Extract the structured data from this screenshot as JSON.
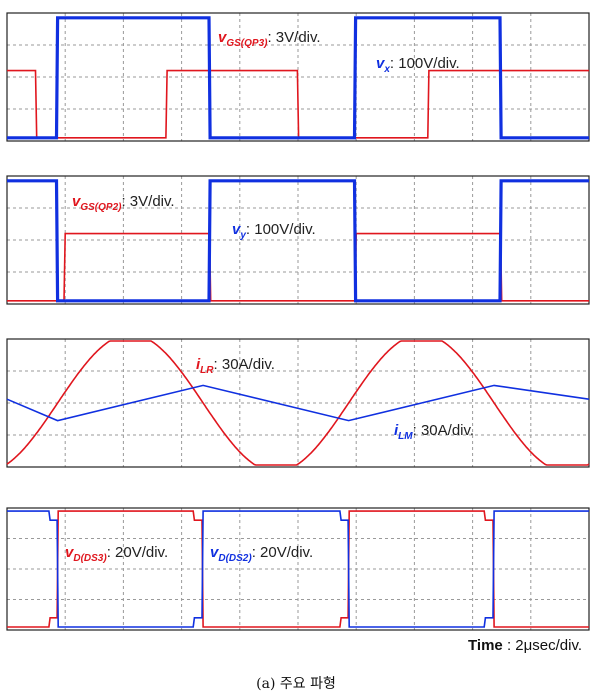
{
  "colors": {
    "red": "#e0161e",
    "blue": "#1030e0",
    "grid": "#9a9a9a",
    "frame": "#222222"
  },
  "chart_data": [
    {
      "type": "line",
      "panel": "top",
      "series": [
        {
          "symbol": "v",
          "subscript": "GS(QP3)",
          "scale": ": 3V/div.",
          "color": "red",
          "x": [
            0,
            0.49,
            0.51,
            2.73,
            2.75,
            4.99,
            5.01,
            7.23,
            7.25,
            10
          ],
          "y": [
            0.2,
            0.2,
            -1.9,
            -1.9,
            0.2,
            0.2,
            -1.9,
            -1.9,
            0.2,
            0.2
          ]
        },
        {
          "symbol": "v",
          "subscript": "x",
          "scale": ": 100V/div.",
          "color": "blue",
          "x": [
            0,
            0.85,
            0.87,
            3.47,
            3.49,
            5.97,
            5.99,
            8.47,
            8.49,
            10
          ],
          "y": [
            -1.9,
            -1.9,
            1.85,
            1.85,
            -1.9,
            -1.9,
            1.85,
            1.85,
            -1.9,
            -1.9
          ]
        }
      ]
    },
    {
      "type": "line",
      "panel": "second",
      "series": [
        {
          "symbol": "v",
          "subscript": "GS(QP2)",
          "scale": ": 3V/div.",
          "color": "red",
          "x": [
            0,
            0.98,
            1.0,
            3.48,
            3.5,
            5.98,
            6.0,
            8.48,
            8.5,
            10
          ],
          "y": [
            -1.9,
            -1.9,
            0.2,
            0.2,
            -1.9,
            -1.9,
            0.2,
            0.2,
            -1.9,
            -1.9
          ]
        },
        {
          "symbol": "v",
          "subscript": "y",
          "scale": ": 100V/div.",
          "color": "blue",
          "x": [
            0,
            0.85,
            0.87,
            3.47,
            3.49,
            5.97,
            5.99,
            8.47,
            8.49,
            10
          ],
          "y": [
            1.85,
            1.85,
            -1.9,
            -1.9,
            1.85,
            1.85,
            -1.9,
            -1.9,
            1.85,
            1.85
          ]
        }
      ]
    },
    {
      "type": "line",
      "panel": "third",
      "series": [
        {
          "symbol": "i",
          "subscript": "LR",
          "scale": ": 30A/div.",
          "color": "red",
          "shape": "sine",
          "amplitude": 2.15,
          "period": 5.0,
          "phase_x": 0.87,
          "offset": 0
        },
        {
          "symbol": "i",
          "subscript": "LM",
          "scale": ": 30A/div.",
          "color": "blue",
          "x": [
            0,
            0.87,
            3.37,
            5.87,
            8.37,
            10
          ],
          "y": [
            0.12,
            -0.55,
            0.55,
            -0.55,
            0.55,
            0.12
          ]
        }
      ]
    },
    {
      "type": "line",
      "panel": "bottom",
      "series": [
        {
          "symbol": "v",
          "subscript": "D(DS3)",
          "scale": ": 20V/div.",
          "color": "red",
          "x": [
            0,
            0.72,
            0.74,
            0.86,
            0.88,
            3.2,
            3.22,
            3.35,
            3.37,
            5.72,
            5.74,
            5.86,
            5.88,
            8.2,
            8.22,
            8.35,
            8.37,
            10
          ],
          "y": [
            -1.9,
            -1.9,
            -1.6,
            -1.6,
            1.9,
            1.9,
            1.6,
            1.6,
            -1.9,
            -1.9,
            -1.6,
            -1.6,
            1.9,
            1.9,
            1.6,
            1.6,
            -1.9,
            -1.9
          ]
        },
        {
          "symbol": "v",
          "subscript": "D(DS2)",
          "scale": ": 20V/div.",
          "color": "blue",
          "x": [
            0,
            0.72,
            0.74,
            0.86,
            0.88,
            3.2,
            3.22,
            3.35,
            3.37,
            5.72,
            5.74,
            5.86,
            5.88,
            8.2,
            8.22,
            8.35,
            8.37,
            10
          ],
          "y": [
            1.9,
            1.9,
            1.6,
            1.6,
            -1.9,
            -1.9,
            -1.6,
            -1.6,
            1.9,
            1.9,
            1.6,
            1.6,
            -1.9,
            -1.9,
            -1.6,
            -1.6,
            1.9,
            1.9
          ]
        }
      ]
    }
  ],
  "time_label": {
    "key": "Time",
    "value": ": 2μsec/div."
  },
  "caption": "(a) 주요 파형"
}
